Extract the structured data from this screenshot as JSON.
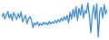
{
  "chart_data": {
    "type": "line",
    "color": "#3c8dd6",
    "tick_labels": false,
    "values": [
      62,
      70,
      58,
      66,
      74,
      60,
      68,
      55,
      72,
      64,
      57,
      69,
      61,
      73,
      52,
      60,
      66,
      48,
      58,
      63,
      55,
      40,
      50,
      46,
      52,
      44,
      49,
      45,
      51,
      47,
      50,
      46,
      53,
      48,
      52,
      49,
      55,
      50,
      57,
      52,
      60,
      54,
      63,
      56,
      66,
      50,
      72,
      58,
      78,
      62,
      84,
      55,
      80,
      66,
      88,
      60,
      76,
      70,
      92,
      64,
      30,
      70,
      86,
      58,
      90,
      20,
      74,
      82,
      60,
      88,
      68,
      78
    ]
  }
}
